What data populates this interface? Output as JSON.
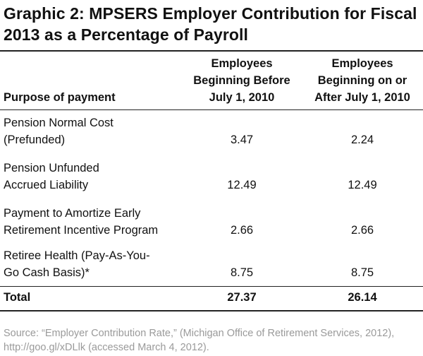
{
  "title": "Graphic 2: MPSERS Employer Contribution for Fiscal 2013 as a Percentage of Payroll",
  "table": {
    "headers": {
      "purpose": "Purpose of payment",
      "before": [
        "Employees",
        "Beginning Before",
        "July 1, 2010"
      ],
      "after": [
        "Employees",
        "Beginning on or",
        "After July 1, 2010"
      ]
    },
    "rows": [
      {
        "purpose": [
          "Pension Normal Cost",
          "(Prefunded)"
        ],
        "before": "3.47",
        "after": "2.24"
      },
      {
        "purpose": [
          "Pension Unfunded",
          "Accrued Liability"
        ],
        "before": "12.49",
        "after": "12.49"
      },
      {
        "purpose": [
          "Payment to Amortize Early",
          "Retirement Incentive Program"
        ],
        "before": "2.66",
        "after": "2.66"
      },
      {
        "purpose": [
          "Retiree Health (Pay-As-You-",
          "Go Cash Basis)*"
        ],
        "before": "8.75",
        "after": "8.75"
      }
    ],
    "total": {
      "label": "Total",
      "before": "27.37",
      "after": "26.14"
    }
  },
  "source": "Source: “Employer Contribution Rate,” (Michigan Office of Retirement Services, 2012), http://goo.gl/xDLlk (accessed March 4, 2012)."
}
